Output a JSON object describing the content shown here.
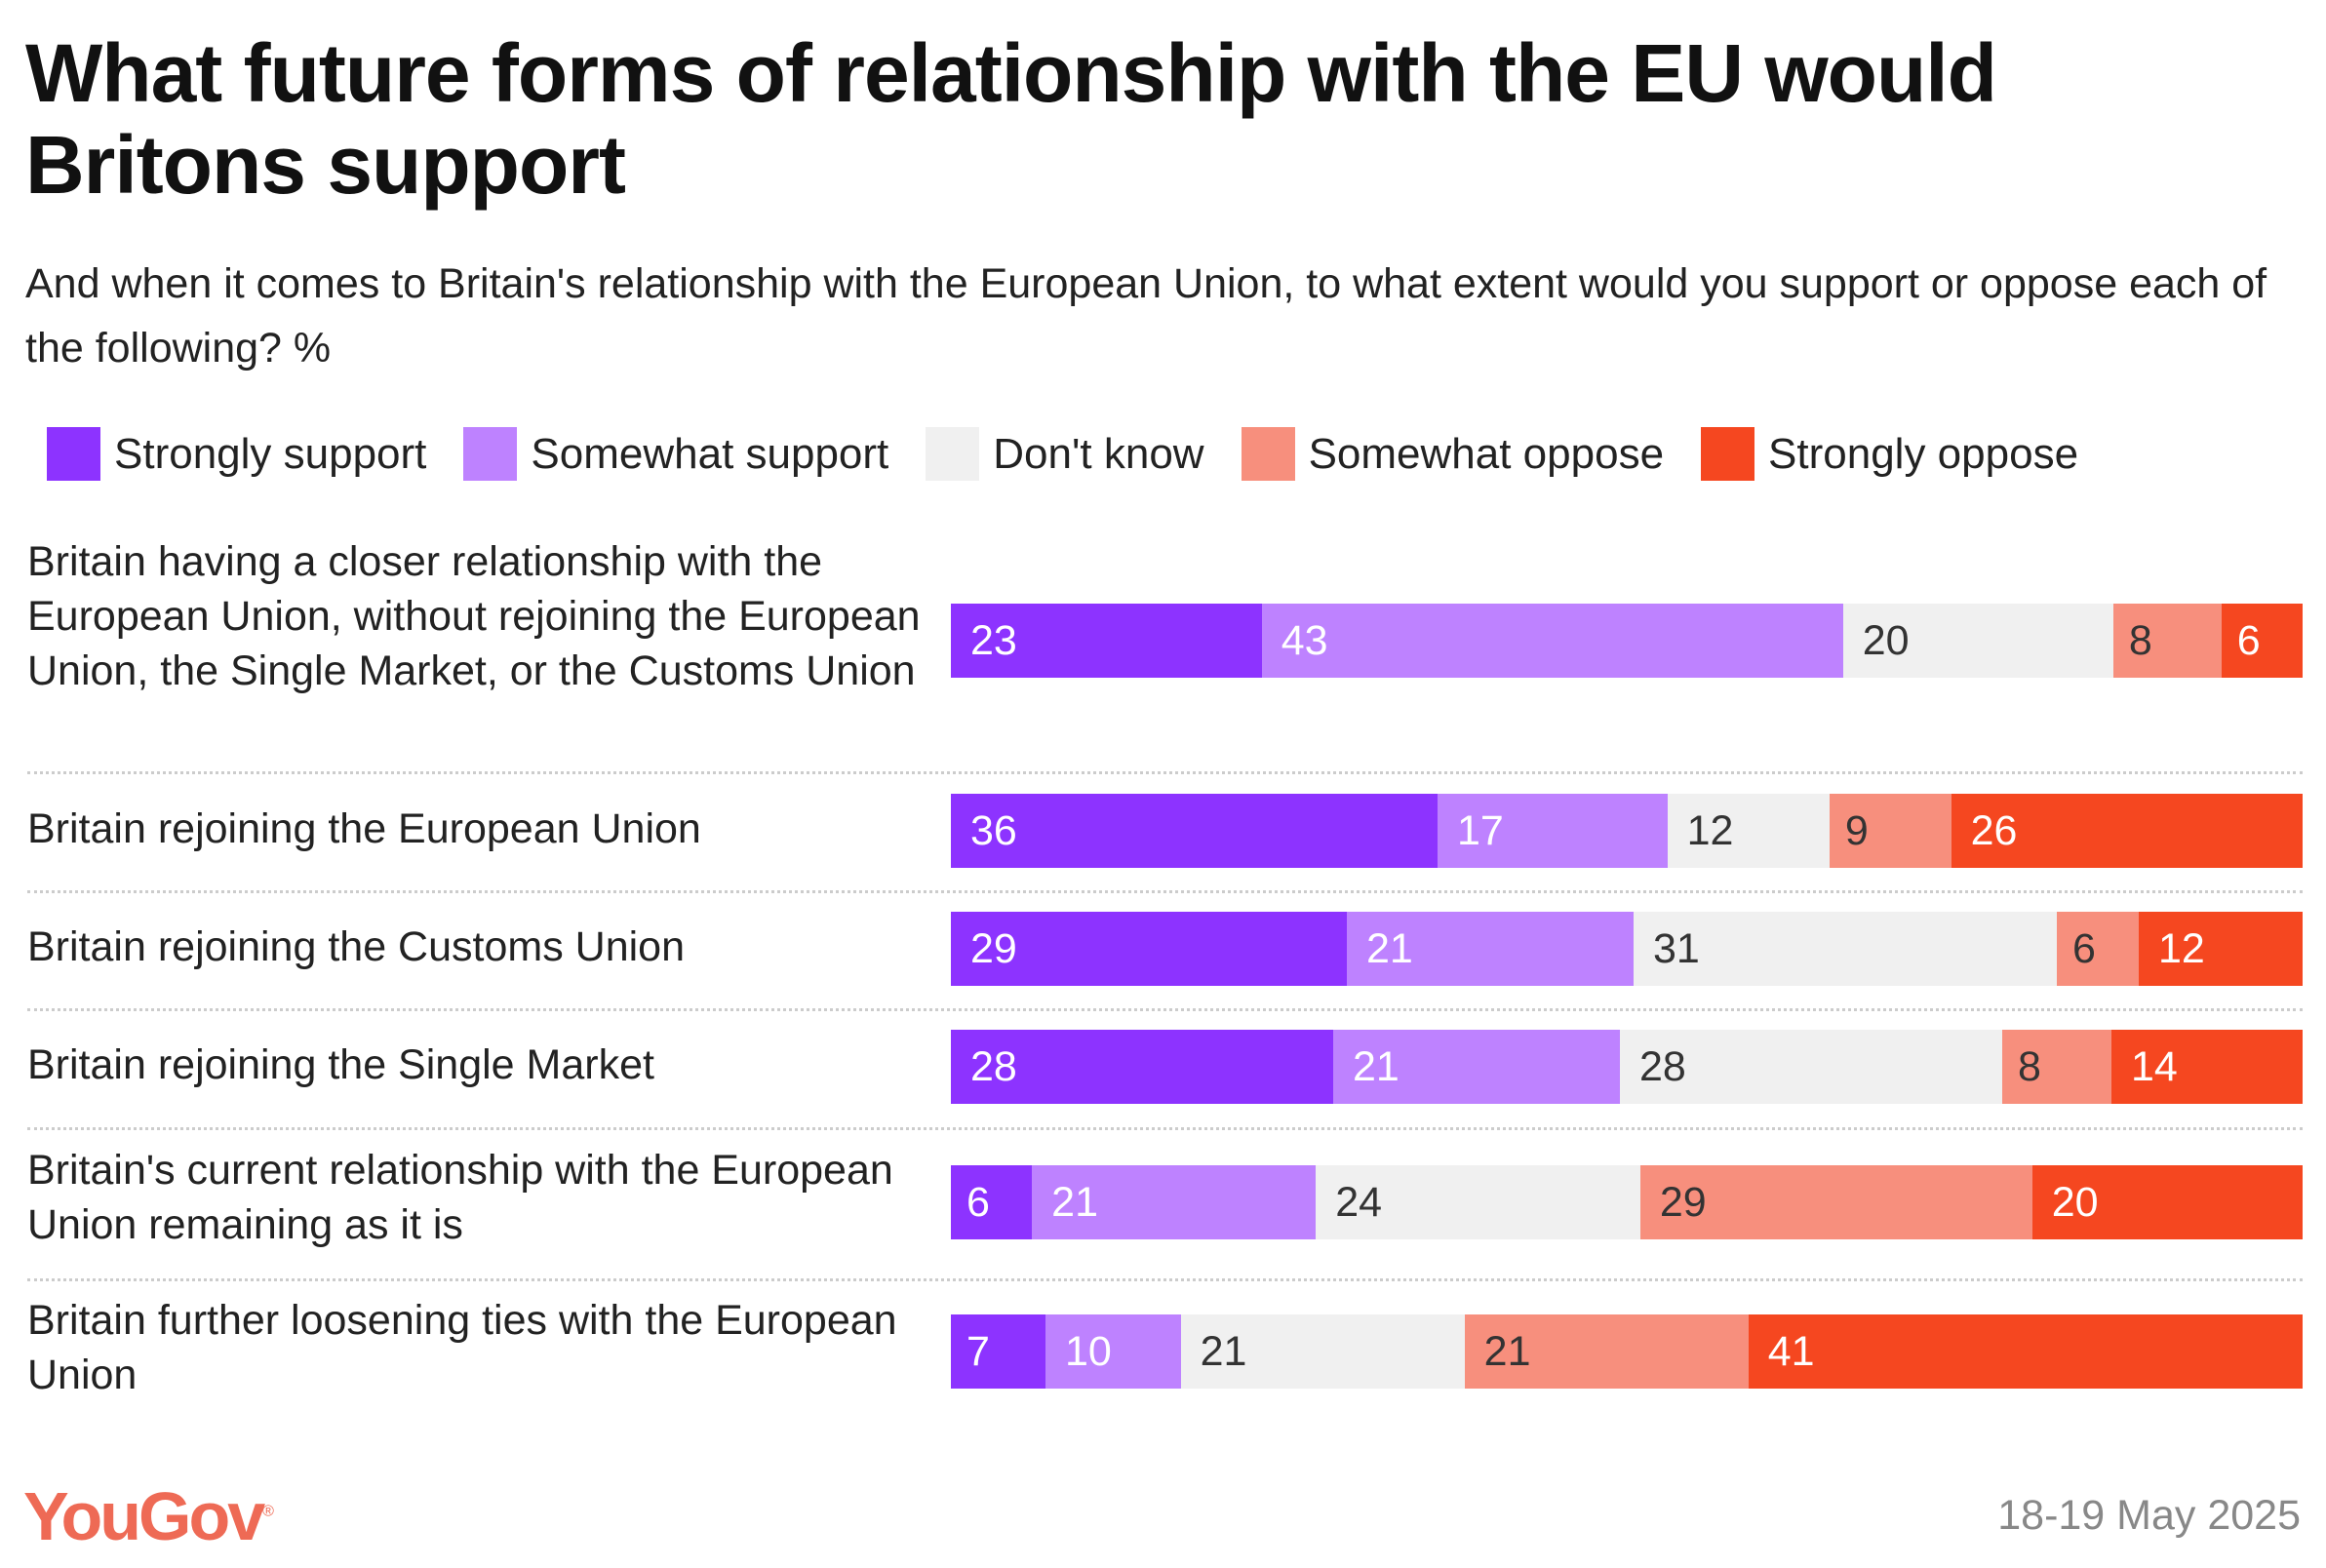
{
  "chart_data": {
    "type": "bar",
    "orientation": "horizontal",
    "stacked": true,
    "title": "What future forms of relationship with the EU would Britons support",
    "subtitle": "And when it comes to Britain's relationship with the European Union, to what extent would you support or oppose each of the following? %",
    "legend": [
      "Strongly support",
      "Somewhat support",
      "Don't know",
      "Somewhat oppose",
      "Strongly oppose"
    ],
    "legend_placement": "top",
    "colors": [
      "#8d33ff",
      "#be82ff",
      "#f0f0f0",
      "#f78f7d",
      "#f54720"
    ],
    "text_colors": [
      "#ffffff",
      "#ffffff",
      "#333333",
      "#333333",
      "#ffffff"
    ],
    "categories": [
      "Britain having a closer relationship with the European Union, without rejoining the European Union, the Single Market, or the Customs Union",
      "Britain rejoining the European Union",
      "Britain rejoining the Customs Union",
      "Britain rejoining the Single Market",
      "Britain's current relationship with the European Union remaining as it is",
      "Britain further loosening ties with the European Union"
    ],
    "series": [
      {
        "name": "Strongly support",
        "values": [
          23,
          36,
          29,
          28,
          6,
          7
        ]
      },
      {
        "name": "Somewhat support",
        "values": [
          43,
          17,
          21,
          21,
          21,
          10
        ]
      },
      {
        "name": "Don't know",
        "values": [
          20,
          12,
          31,
          28,
          24,
          21
        ]
      },
      {
        "name": "Somewhat oppose",
        "values": [
          8,
          9,
          6,
          8,
          29,
          21
        ]
      },
      {
        "name": "Strongly oppose",
        "values": [
          6,
          26,
          12,
          14,
          20,
          41
        ]
      }
    ]
  },
  "footer": {
    "brand": "YouGov",
    "date": "18-19 May 2025"
  }
}
